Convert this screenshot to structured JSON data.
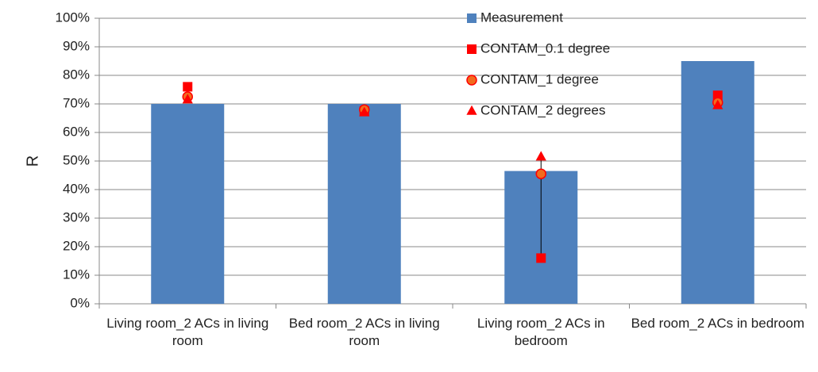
{
  "chart_data": {
    "type": "bar",
    "y_label": "R",
    "categories": [
      "Living room_2 ACs in living room",
      "Bed room_2 ACs in living room",
      "Living room_2 ACs in bedroom",
      "Bed room_2 ACs in bedroom"
    ],
    "series": [
      {
        "name": "Measurement",
        "type": "bar",
        "color": "#4f81bd",
        "values": [
          70,
          70,
          46.5,
          85
        ]
      },
      {
        "name": "CONTAM_0.1 degree",
        "type": "marker",
        "marker": "square",
        "color": "#ff0000",
        "values": [
          76,
          67.5,
          16,
          73
        ]
      },
      {
        "name": "CONTAM_1 degree",
        "type": "marker",
        "marker": "circle",
        "color": "#f26b1d",
        "values": [
          72.5,
          68,
          45.5,
          70.5
        ]
      },
      {
        "name": "CONTAM_2 degrees",
        "type": "marker",
        "marker": "triangle",
        "color": "#ff0000",
        "values": [
          71.5,
          67,
          51.5,
          69.5
        ]
      }
    ],
    "high_low_lines": true,
    "ylim": [
      0,
      100
    ],
    "yticks": [
      {
        "value": 0,
        "label": "0%"
      },
      {
        "value": 10,
        "label": "10%"
      },
      {
        "value": 20,
        "label": "20%"
      },
      {
        "value": 30,
        "label": "30%"
      },
      {
        "value": 40,
        "label": "40%"
      },
      {
        "value": 50,
        "label": "50%"
      },
      {
        "value": 60,
        "label": "60%"
      },
      {
        "value": 70,
        "label": "70%"
      },
      {
        "value": 80,
        "label": "80%"
      },
      {
        "value": 90,
        "label": "90%"
      },
      {
        "value": 100,
        "label": "100%"
      }
    ],
    "grid": true,
    "legend": "top-right"
  }
}
